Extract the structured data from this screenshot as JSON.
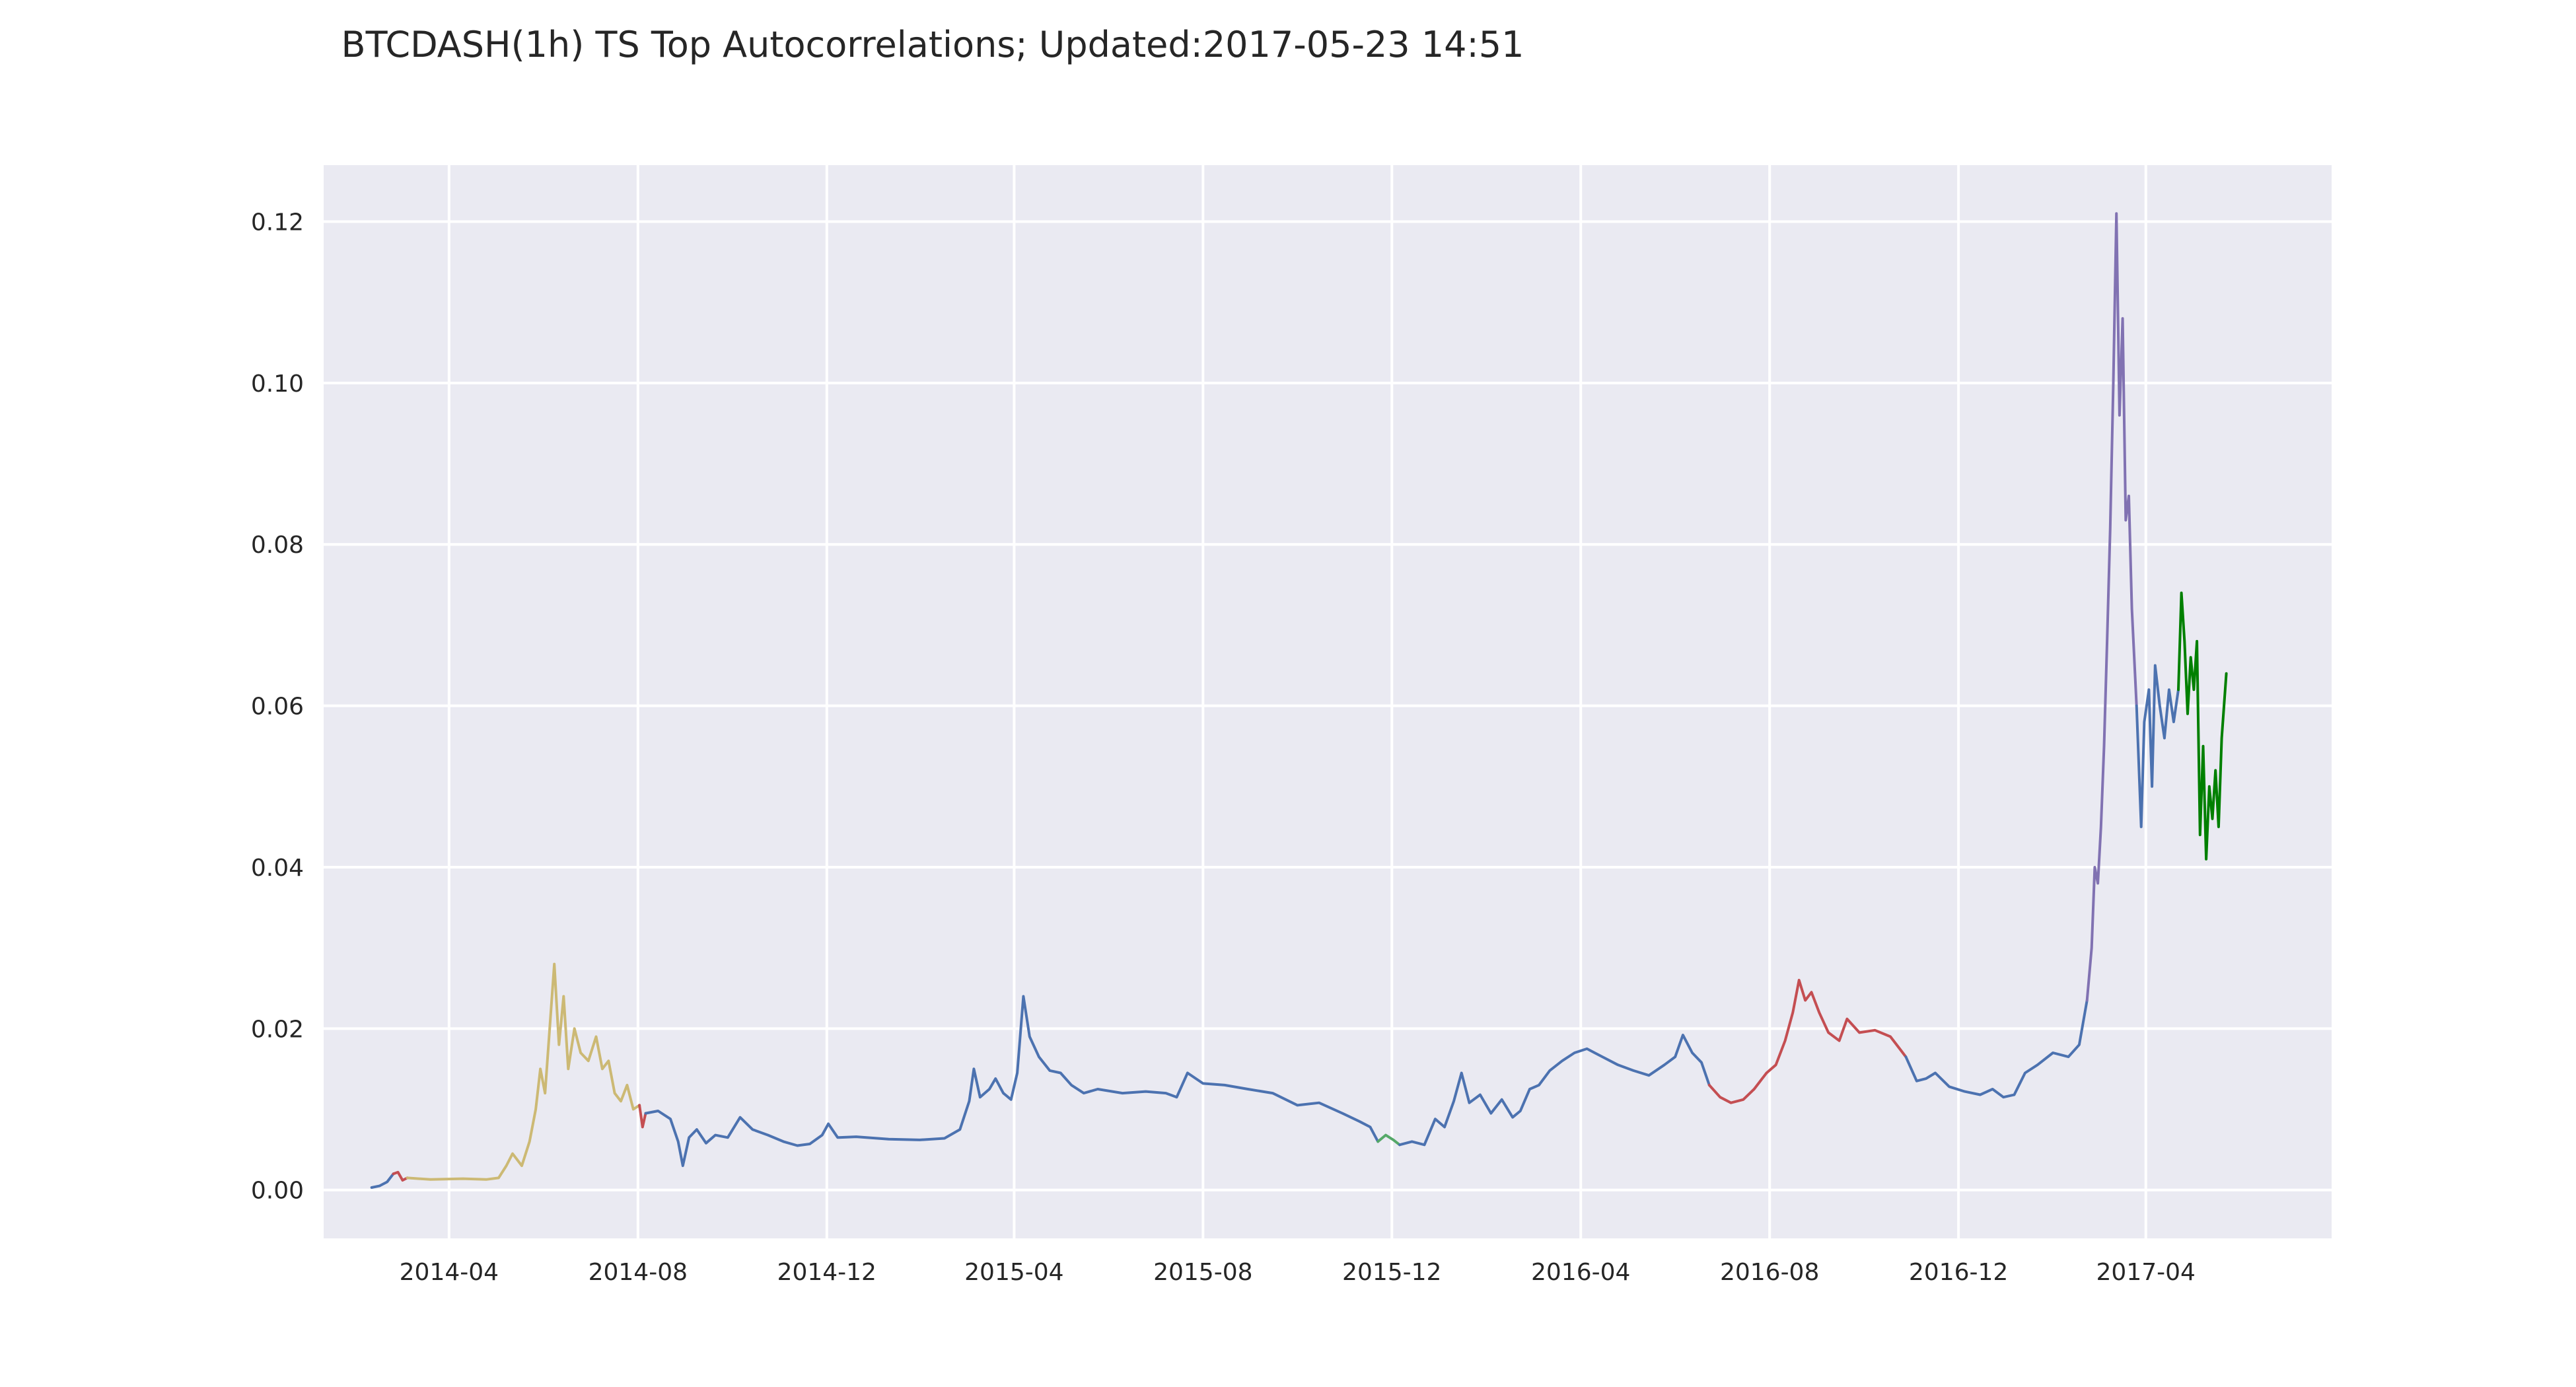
{
  "chart_data": {
    "type": "line",
    "title": "BTCDASH(1h) TS Top Autocorrelations;  Updated:2017-05-23 14:51",
    "xlabel": "",
    "ylabel": "",
    "xlim": [
      "2014-01-10",
      "2017-07-30"
    ],
    "ylim": [
      -0.006,
      0.127
    ],
    "grid": true,
    "legend": "none",
    "x_ticks": [
      {
        "date": "2014-04-01",
        "label": "2014-04"
      },
      {
        "date": "2014-08-01",
        "label": "2014-08"
      },
      {
        "date": "2014-12-01",
        "label": "2014-12"
      },
      {
        "date": "2015-04-01",
        "label": "2015-04"
      },
      {
        "date": "2015-08-01",
        "label": "2015-08"
      },
      {
        "date": "2015-12-01",
        "label": "2015-12"
      },
      {
        "date": "2016-04-01",
        "label": "2016-04"
      },
      {
        "date": "2016-08-01",
        "label": "2016-08"
      },
      {
        "date": "2016-12-01",
        "label": "2016-12"
      },
      {
        "date": "2017-04-01",
        "label": "2017-04"
      }
    ],
    "y_ticks": [
      {
        "value": 0.0,
        "label": "0.00"
      },
      {
        "value": 0.02,
        "label": "0.02"
      },
      {
        "value": 0.04,
        "label": "0.04"
      },
      {
        "value": 0.06,
        "label": "0.06"
      },
      {
        "value": 0.08,
        "label": "0.08"
      },
      {
        "value": 0.1,
        "label": "0.10"
      },
      {
        "value": 0.12,
        "label": "0.12"
      }
    ],
    "series": [
      {
        "color": "#4c72b0",
        "points": [
          [
            "2014-02-10",
            0.0003
          ],
          [
            "2014-02-15",
            0.0005
          ],
          [
            "2014-02-20",
            0.001
          ],
          [
            "2014-02-24",
            0.002
          ]
        ]
      },
      {
        "color": "#c44e52",
        "points": [
          [
            "2014-02-24",
            0.002
          ],
          [
            "2014-02-27",
            0.0022
          ],
          [
            "2014-03-02",
            0.0012
          ],
          [
            "2014-03-05",
            0.0015
          ]
        ]
      },
      {
        "color": "#ccb974",
        "points": [
          [
            "2014-03-05",
            0.0015
          ],
          [
            "2014-03-20",
            0.0013
          ],
          [
            "2014-04-10",
            0.0014
          ],
          [
            "2014-04-25",
            0.0013
          ],
          [
            "2014-05-03",
            0.0015
          ],
          [
            "2014-05-08",
            0.003
          ],
          [
            "2014-05-12",
            0.0045
          ],
          [
            "2014-05-18",
            0.003
          ],
          [
            "2014-05-23",
            0.006
          ],
          [
            "2014-05-27",
            0.01
          ],
          [
            "2014-05-30",
            0.015
          ],
          [
            "2014-06-02",
            0.012
          ],
          [
            "2014-06-05",
            0.02
          ],
          [
            "2014-06-08",
            0.028
          ],
          [
            "2014-06-11",
            0.018
          ],
          [
            "2014-06-14",
            0.024
          ],
          [
            "2014-06-17",
            0.015
          ],
          [
            "2014-06-21",
            0.02
          ],
          [
            "2014-06-25",
            0.017
          ],
          [
            "2014-06-30",
            0.016
          ],
          [
            "2014-07-05",
            0.019
          ],
          [
            "2014-07-09",
            0.015
          ],
          [
            "2014-07-13",
            0.016
          ],
          [
            "2014-07-17",
            0.012
          ],
          [
            "2014-07-21",
            0.011
          ],
          [
            "2014-07-25",
            0.013
          ],
          [
            "2014-07-29",
            0.01
          ],
          [
            "2014-08-02",
            0.0105
          ]
        ]
      },
      {
        "color": "#c44e52",
        "points": [
          [
            "2014-08-02",
            0.0105
          ],
          [
            "2014-08-04",
            0.0078
          ],
          [
            "2014-08-06",
            0.0095
          ]
        ]
      },
      {
        "color": "#4c72b0",
        "points": [
          [
            "2014-08-06",
            0.0095
          ],
          [
            "2014-08-14",
            0.0098
          ],
          [
            "2014-08-22",
            0.0088
          ],
          [
            "2014-08-27",
            0.006
          ],
          [
            "2014-08-30",
            0.003
          ],
          [
            "2014-09-03",
            0.0065
          ],
          [
            "2014-09-08",
            0.0075
          ],
          [
            "2014-09-14",
            0.0058
          ],
          [
            "2014-09-20",
            0.0068
          ],
          [
            "2014-09-28",
            0.0065
          ],
          [
            "2014-10-06",
            0.009
          ],
          [
            "2014-10-14",
            0.0075
          ],
          [
            "2014-10-24",
            0.0068
          ],
          [
            "2014-11-03",
            0.006
          ],
          [
            "2014-11-12",
            0.0055
          ],
          [
            "2014-11-20",
            0.0057
          ],
          [
            "2014-11-28",
            0.0068
          ],
          [
            "2014-12-02",
            0.0082
          ],
          [
            "2014-12-08",
            0.0065
          ],
          [
            "2014-12-20",
            0.0066
          ],
          [
            "2015-01-10",
            0.0063
          ],
          [
            "2015-01-30",
            0.0062
          ],
          [
            "2015-02-15",
            0.0064
          ],
          [
            "2015-02-25",
            0.0075
          ],
          [
            "2015-03-03",
            0.011
          ],
          [
            "2015-03-06",
            0.015
          ],
          [
            "2015-03-10",
            0.0115
          ],
          [
            "2015-03-16",
            0.0125
          ],
          [
            "2015-03-20",
            0.0138
          ],
          [
            "2015-03-25",
            0.012
          ],
          [
            "2015-03-30",
            0.0112
          ],
          [
            "2015-04-03",
            0.0145
          ],
          [
            "2015-04-07",
            0.024
          ],
          [
            "2015-04-11",
            0.019
          ],
          [
            "2015-04-17",
            0.0165
          ],
          [
            "2015-04-24",
            0.0148
          ],
          [
            "2015-05-01",
            0.0145
          ],
          [
            "2015-05-08",
            0.013
          ],
          [
            "2015-05-16",
            0.012
          ],
          [
            "2015-05-25",
            0.0125
          ],
          [
            "2015-06-10",
            0.012
          ],
          [
            "2015-06-25",
            0.0122
          ],
          [
            "2015-07-08",
            0.012
          ],
          [
            "2015-07-15",
            0.0115
          ],
          [
            "2015-07-22",
            0.0145
          ],
          [
            "2015-08-01",
            0.0132
          ],
          [
            "2015-08-15",
            0.013
          ],
          [
            "2015-08-30",
            0.0125
          ],
          [
            "2015-09-15",
            0.012
          ],
          [
            "2015-10-01",
            0.0105
          ],
          [
            "2015-10-15",
            0.0108
          ],
          [
            "2015-10-30",
            0.0095
          ],
          [
            "2015-11-10",
            0.0085
          ],
          [
            "2015-11-17",
            0.0078
          ],
          [
            "2015-11-22",
            0.006
          ]
        ]
      },
      {
        "color": "#55a868",
        "points": [
          [
            "2015-11-22",
            0.006
          ],
          [
            "2015-11-27",
            0.0068
          ],
          [
            "2015-12-02",
            0.0062
          ],
          [
            "2015-12-06",
            0.0056
          ]
        ]
      },
      {
        "color": "#4c72b0",
        "points": [
          [
            "2015-12-06",
            0.0056
          ],
          [
            "2015-12-14",
            0.006
          ],
          [
            "2015-12-22",
            0.0056
          ],
          [
            "2015-12-29",
            0.0088
          ],
          [
            "2016-01-04",
            0.0078
          ],
          [
            "2016-01-10",
            0.011
          ],
          [
            "2016-01-15",
            0.0145
          ],
          [
            "2016-01-20",
            0.0108
          ],
          [
            "2016-01-27",
            0.0118
          ],
          [
            "2016-02-03",
            0.0095
          ],
          [
            "2016-02-10",
            0.0112
          ],
          [
            "2016-02-17",
            0.009
          ],
          [
            "2016-02-22",
            0.0098
          ],
          [
            "2016-02-28",
            0.0125
          ],
          [
            "2016-03-05",
            0.013
          ],
          [
            "2016-03-12",
            0.0148
          ],
          [
            "2016-03-20",
            0.016
          ],
          [
            "2016-03-28",
            0.017
          ],
          [
            "2016-04-05",
            0.0175
          ],
          [
            "2016-04-15",
            0.0165
          ],
          [
            "2016-04-25",
            0.0155
          ],
          [
            "2016-05-05",
            0.0148
          ],
          [
            "2016-05-15",
            0.0142
          ],
          [
            "2016-05-25",
            0.0155
          ],
          [
            "2016-06-01",
            0.0165
          ],
          [
            "2016-06-06",
            0.0192
          ],
          [
            "2016-06-12",
            0.017
          ],
          [
            "2016-06-18",
            0.0158
          ],
          [
            "2016-06-23",
            0.013
          ]
        ]
      },
      {
        "color": "#c44e52",
        "points": [
          [
            "2016-06-23",
            0.013
          ],
          [
            "2016-06-30",
            0.0115
          ],
          [
            "2016-07-07",
            0.0108
          ],
          [
            "2016-07-15",
            0.0112
          ],
          [
            "2016-07-22",
            0.0125
          ],
          [
            "2016-07-30",
            0.0145
          ],
          [
            "2016-08-05",
            0.0155
          ],
          [
            "2016-08-11",
            0.0185
          ],
          [
            "2016-08-16",
            0.022
          ],
          [
            "2016-08-20",
            0.026
          ],
          [
            "2016-08-24",
            0.0235
          ],
          [
            "2016-08-28",
            0.0245
          ],
          [
            "2016-09-02",
            0.022
          ],
          [
            "2016-09-08",
            0.0195
          ],
          [
            "2016-09-15",
            0.0185
          ],
          [
            "2016-09-20",
            0.0212
          ],
          [
            "2016-09-28",
            0.0195
          ],
          [
            "2016-10-08",
            0.0198
          ],
          [
            "2016-10-18",
            0.019
          ],
          [
            "2016-10-24",
            0.0175
          ],
          [
            "2016-10-28",
            0.0165
          ]
        ]
      },
      {
        "color": "#4c72b0",
        "points": [
          [
            "2016-10-28",
            0.0165
          ],
          [
            "2016-11-04",
            0.0135
          ],
          [
            "2016-11-10",
            0.0138
          ],
          [
            "2016-11-16",
            0.0145
          ],
          [
            "2016-11-25",
            0.0128
          ],
          [
            "2016-12-05",
            0.0122
          ],
          [
            "2016-12-15",
            0.0118
          ],
          [
            "2016-12-23",
            0.0125
          ],
          [
            "2016-12-30",
            0.0115
          ],
          [
            "2017-01-06",
            0.0118
          ],
          [
            "2017-01-13",
            0.0145
          ],
          [
            "2017-01-21",
            0.0155
          ],
          [
            "2017-01-31",
            0.017
          ],
          [
            "2017-02-10",
            0.0165
          ],
          [
            "2017-02-17",
            0.018
          ],
          [
            "2017-02-22",
            0.0235
          ]
        ]
      },
      {
        "color": "#8172b2",
        "points": [
          [
            "2017-02-22",
            0.0235
          ],
          [
            "2017-02-25",
            0.03
          ],
          [
            "2017-02-27",
            0.04
          ],
          [
            "2017-03-01",
            0.038
          ],
          [
            "2017-03-03",
            0.045
          ],
          [
            "2017-03-05",
            0.055
          ],
          [
            "2017-03-07",
            0.068
          ],
          [
            "2017-03-09",
            0.082
          ],
          [
            "2017-03-11",
            0.1
          ],
          [
            "2017-03-13",
            0.121
          ],
          [
            "2017-03-15",
            0.096
          ],
          [
            "2017-03-17",
            0.108
          ],
          [
            "2017-03-19",
            0.083
          ],
          [
            "2017-03-21",
            0.086
          ],
          [
            "2017-03-23",
            0.072
          ],
          [
            "2017-03-26",
            0.06
          ]
        ]
      },
      {
        "color": "#4c72b0",
        "points": [
          [
            "2017-03-26",
            0.06
          ],
          [
            "2017-03-29",
            0.045
          ],
          [
            "2017-03-31",
            0.058
          ],
          [
            "2017-04-03",
            0.062
          ],
          [
            "2017-04-05",
            0.05
          ],
          [
            "2017-04-07",
            0.065
          ],
          [
            "2017-04-10",
            0.06
          ],
          [
            "2017-04-13",
            0.056
          ],
          [
            "2017-04-16",
            0.062
          ],
          [
            "2017-04-19",
            0.058
          ],
          [
            "2017-04-22",
            0.062
          ]
        ]
      },
      {
        "color": "#008000",
        "points": [
          [
            "2017-04-22",
            0.062
          ],
          [
            "2017-04-24",
            0.074
          ],
          [
            "2017-04-26",
            0.068
          ],
          [
            "2017-04-28",
            0.059
          ],
          [
            "2017-04-30",
            0.066
          ],
          [
            "2017-05-02",
            0.062
          ],
          [
            "2017-05-04",
            0.068
          ],
          [
            "2017-05-06",
            0.044
          ],
          [
            "2017-05-08",
            0.055
          ],
          [
            "2017-05-10",
            0.041
          ],
          [
            "2017-05-12",
            0.05
          ],
          [
            "2017-05-14",
            0.046
          ],
          [
            "2017-05-16",
            0.052
          ],
          [
            "2017-05-18",
            0.045
          ],
          [
            "2017-05-20",
            0.056
          ],
          [
            "2017-05-23",
            0.064
          ]
        ]
      }
    ]
  }
}
